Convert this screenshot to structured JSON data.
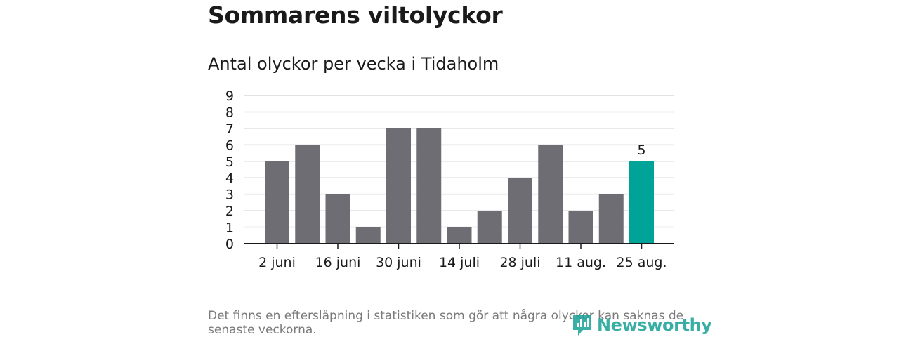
{
  "title": "Sommarens viltolyckor",
  "subtitle": "Antal olyckor per vecka i Tidaholm",
  "footer": {
    "note": "Det finns en eftersläpning i statistiken som gör att några olyckor kan saknas de senaste veckorna.",
    "brand": "Newsworthy"
  },
  "colors": {
    "bar": "#6e6d73",
    "highlight": "#00a398",
    "grid": "#d9d9d9",
    "axis": "#1a1a1a",
    "brand": "#16a195"
  },
  "chart_data": {
    "type": "bar",
    "title": "Antal olyckor per vecka i Tidaholm",
    "xlabel": "",
    "ylabel": "",
    "ylim": [
      0,
      9
    ],
    "yticks": [
      0,
      1,
      2,
      3,
      4,
      5,
      6,
      7,
      8,
      9
    ],
    "grid": true,
    "values": [
      5,
      6,
      3,
      1,
      7,
      7,
      1,
      2,
      4,
      6,
      2,
      3,
      5
    ],
    "xtick_labels": [
      {
        "bar": 0,
        "label": "2 juni"
      },
      {
        "bar": 2,
        "label": "16 juni"
      },
      {
        "bar": 4,
        "label": "30 juni"
      },
      {
        "bar": 6,
        "label": "14 juli"
      },
      {
        "bar": 8,
        "label": "28 juli"
      },
      {
        "bar": 10,
        "label": "11 aug."
      },
      {
        "bar": 12,
        "label": "25 aug."
      }
    ],
    "highlight_index": 12,
    "data_labels": [
      {
        "bar": 12,
        "label": "5"
      }
    ]
  }
}
